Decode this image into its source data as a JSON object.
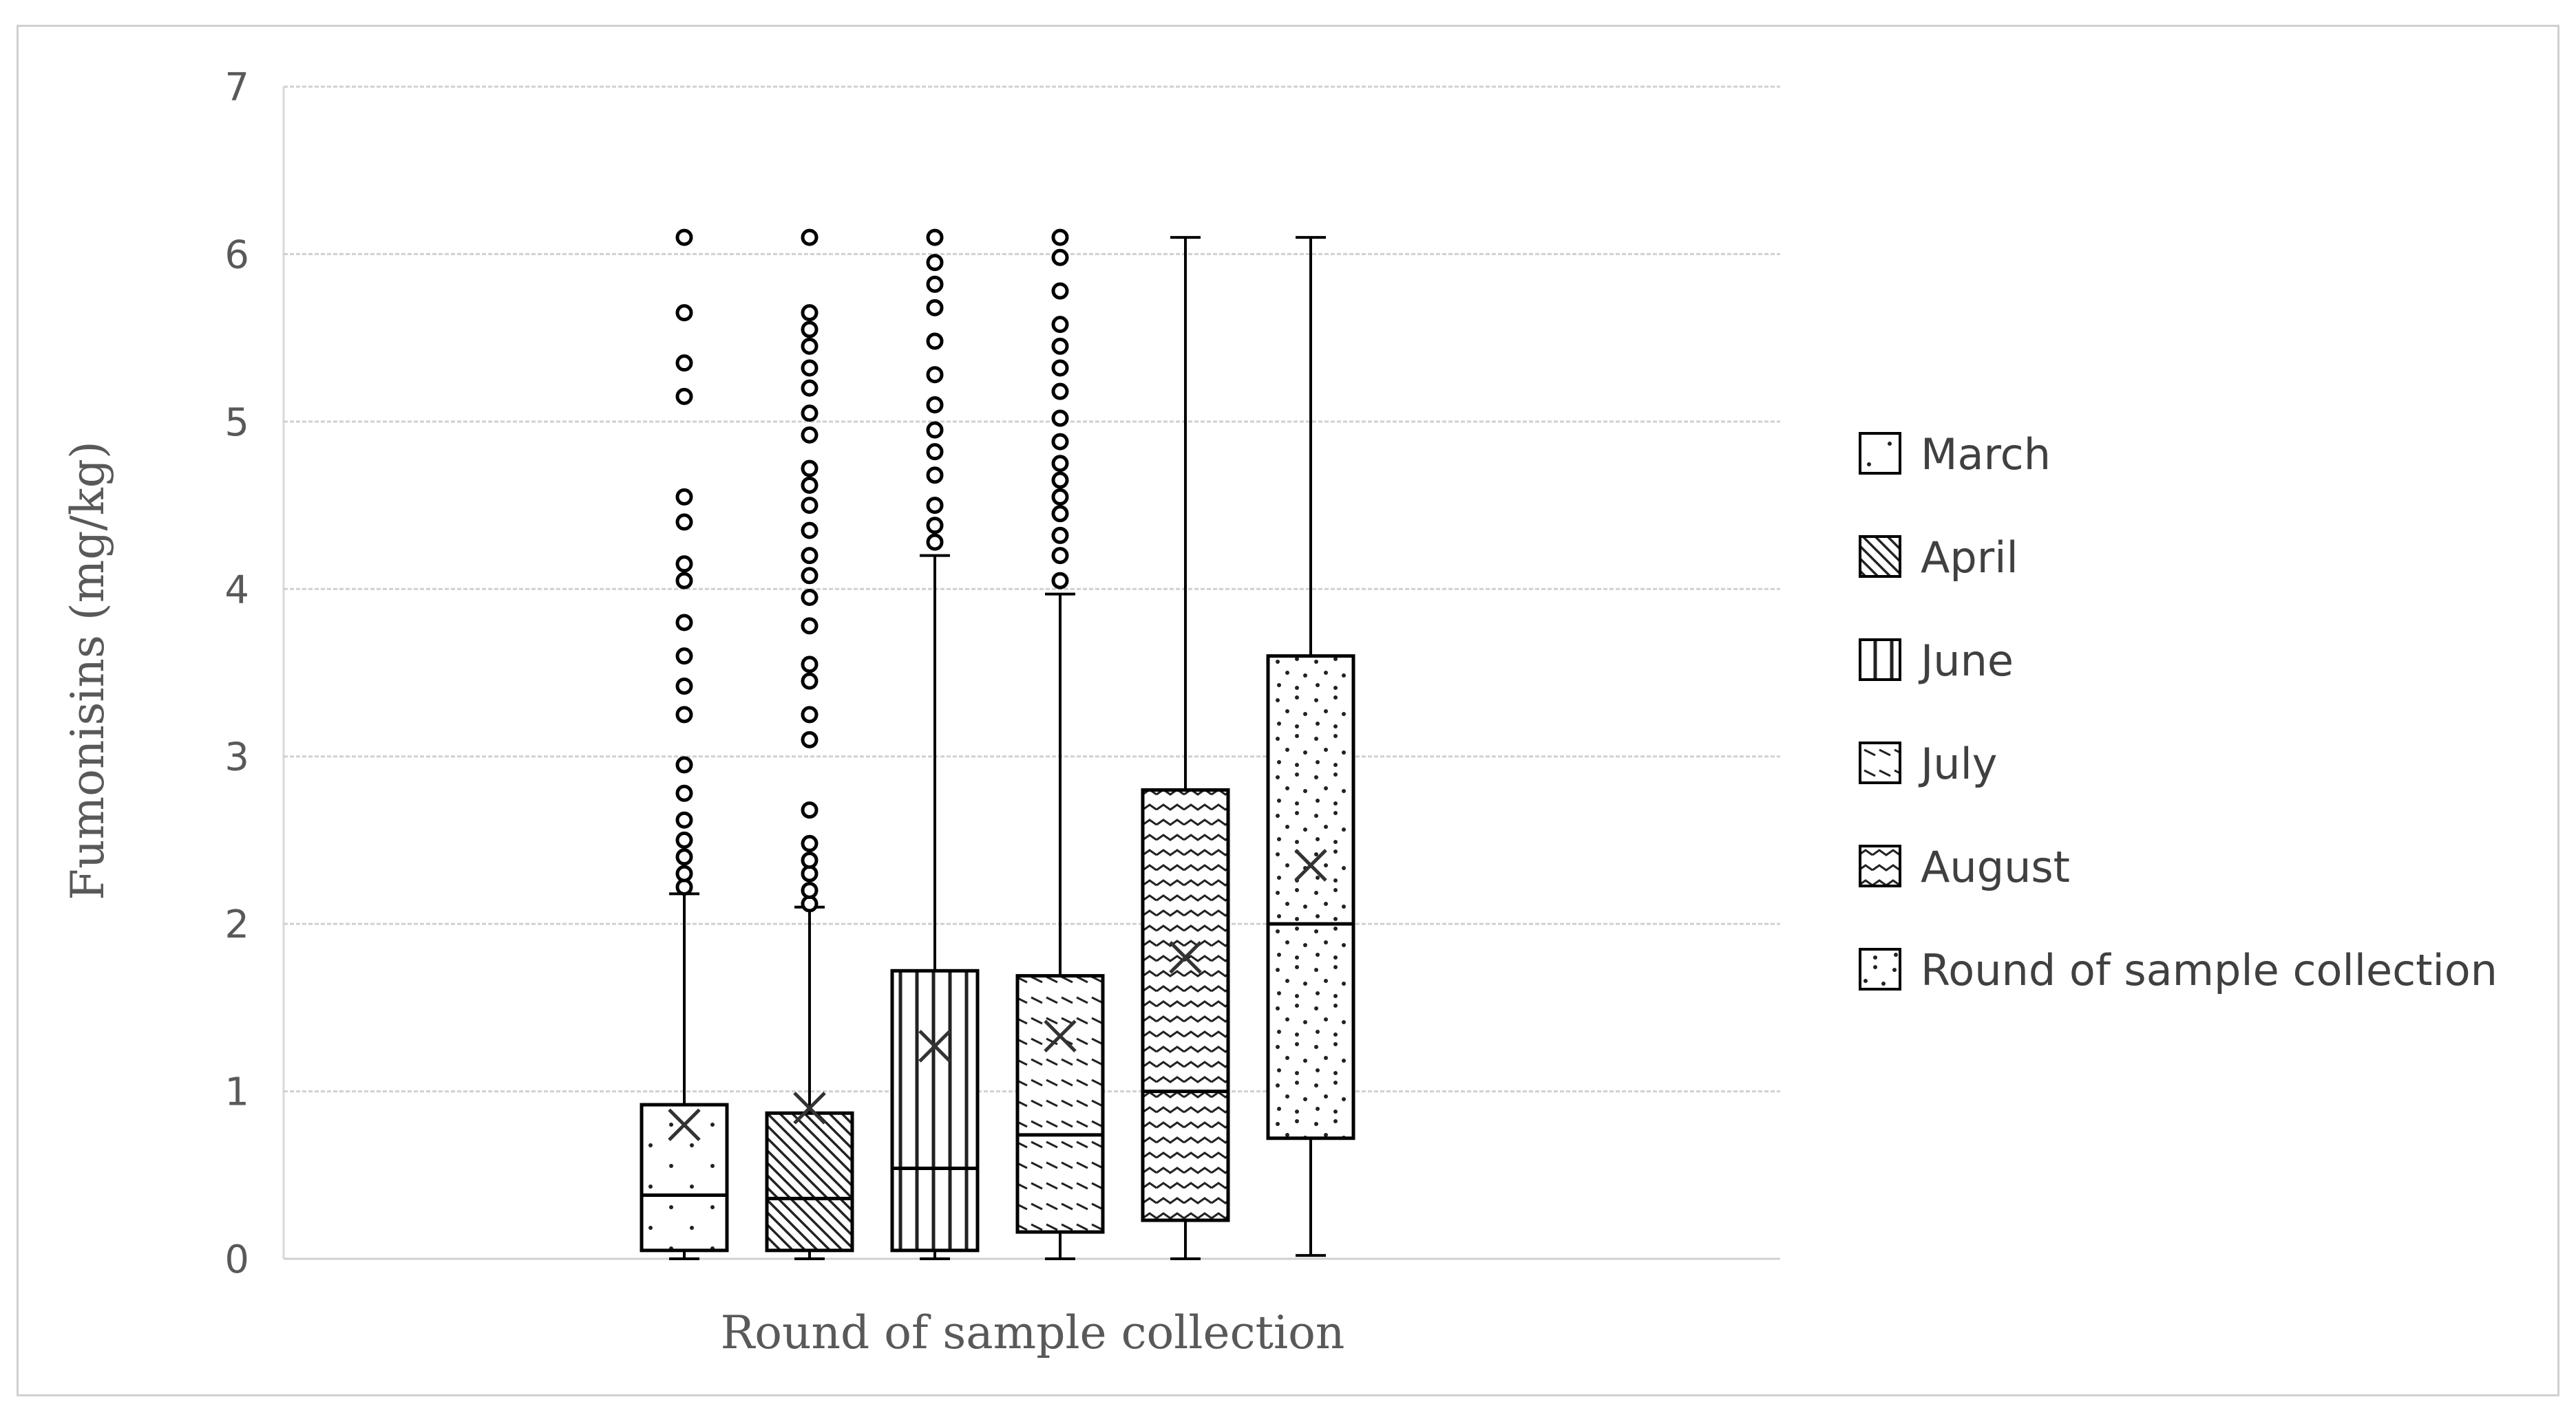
{
  "chart_data": {
    "type": "box",
    "xlabel": "Round of sample collection",
    "ylabel": "Fumonisins (mg/kg)",
    "ylim": [
      0,
      7
    ],
    "yticks": [
      "0",
      "1",
      "2",
      "3",
      "4",
      "5",
      "6",
      "7"
    ],
    "grid": true,
    "legend_position": "right",
    "series": [
      {
        "name": "March",
        "pattern": "dots",
        "min": 0.0,
        "q1": 0.05,
        "median": 0.38,
        "q3": 0.92,
        "whisker_high": 2.18,
        "mean": 0.8,
        "outliers": [
          2.22,
          2.3,
          2.4,
          2.5,
          2.62,
          2.78,
          2.95,
          3.25,
          3.42,
          3.6,
          3.8,
          4.05,
          4.15,
          4.4,
          4.55,
          5.15,
          5.35,
          5.65,
          6.1
        ]
      },
      {
        "name": "April",
        "pattern": "diagonal",
        "min": 0.0,
        "q1": 0.05,
        "median": 0.36,
        "q3": 0.87,
        "whisker_high": 2.1,
        "mean": 0.9,
        "outliers": [
          2.12,
          2.2,
          2.3,
          2.38,
          2.48,
          2.68,
          3.1,
          3.25,
          3.45,
          3.55,
          3.78,
          3.95,
          4.08,
          4.2,
          4.35,
          4.5,
          4.62,
          4.72,
          4.92,
          5.05,
          5.2,
          5.32,
          5.45,
          5.55,
          5.65,
          6.1
        ]
      },
      {
        "name": "June",
        "pattern": "vertical",
        "min": 0.0,
        "q1": 0.05,
        "median": 0.54,
        "q3": 1.72,
        "whisker_high": 4.2,
        "mean": 1.27,
        "outliers": [
          4.28,
          4.38,
          4.5,
          4.68,
          4.82,
          4.95,
          5.1,
          5.28,
          5.48,
          5.68,
          5.82,
          5.95,
          6.1
        ]
      },
      {
        "name": "July",
        "pattern": "dashes",
        "min": 0.0,
        "q1": 0.16,
        "median": 0.74,
        "q3": 1.69,
        "whisker_high": 3.97,
        "mean": 1.33,
        "outliers": [
          4.05,
          4.2,
          4.32,
          4.45,
          4.55,
          4.65,
          4.75,
          4.88,
          5.02,
          5.18,
          5.32,
          5.45,
          5.58,
          5.78,
          5.98,
          6.1
        ]
      },
      {
        "name": "August",
        "pattern": "waves",
        "min": 0.0,
        "q1": 0.23,
        "median": 1.0,
        "q3": 2.8,
        "whisker_high": 6.1,
        "mean": 1.8,
        "outliers": []
      },
      {
        "name": "Round of sample collection",
        "pattern": "confetti",
        "min": 0.02,
        "q1": 0.72,
        "median": 2.0,
        "q3": 3.6,
        "whisker_high": 6.1,
        "mean": 2.35,
        "outliers": []
      }
    ]
  }
}
